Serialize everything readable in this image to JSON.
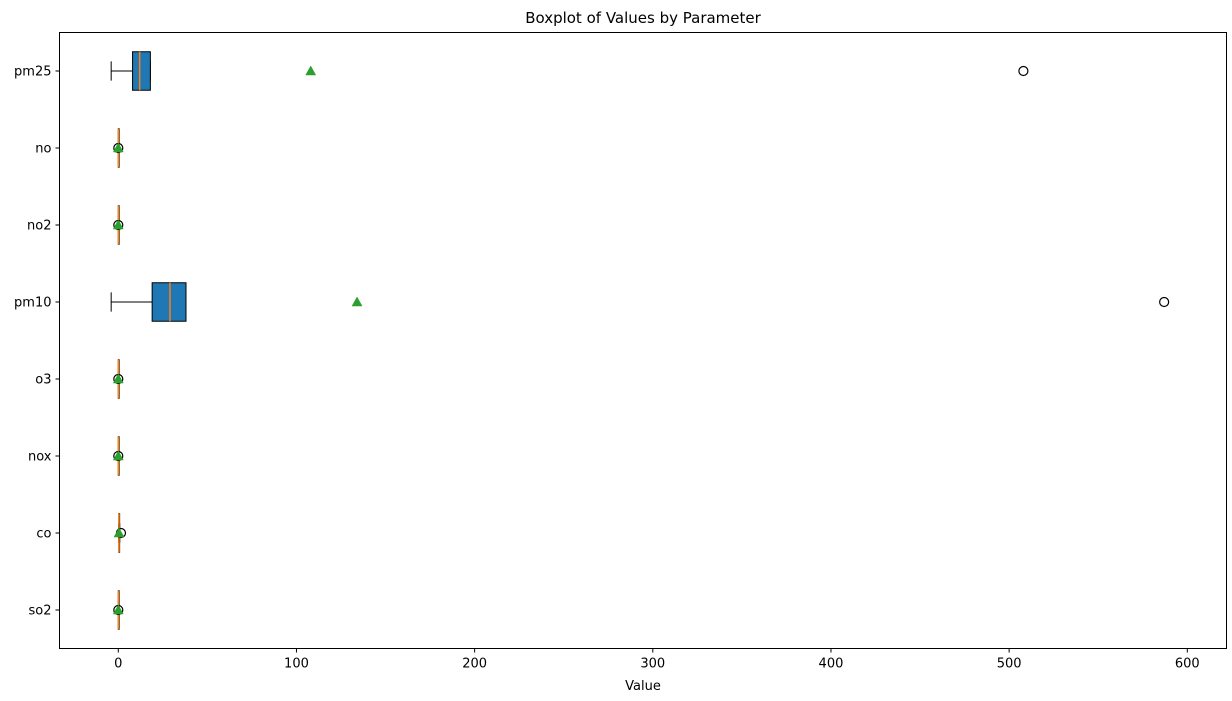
{
  "chart_data": {
    "type": "boxplot",
    "orientation": "horizontal",
    "title": "Boxplot of Values by Parameter",
    "xlabel": "Value",
    "ylabel": "",
    "xlim": [
      -33,
      622
    ],
    "xticks": [
      0,
      100,
      200,
      300,
      400,
      500,
      600
    ],
    "categories": [
      "pm25",
      "no",
      "no2",
      "pm10",
      "o3",
      "nox",
      "co",
      "so2"
    ],
    "series": [
      {
        "category": "pm25",
        "whisker_low": -4,
        "q1": 8,
        "median": 12,
        "q3": 18,
        "whisker_high": 18,
        "mean": 108,
        "outliers": [
          508
        ]
      },
      {
        "category": "no",
        "whisker_low": 0,
        "q1": 0,
        "median": 0,
        "q3": 0,
        "whisker_high": 0,
        "mean": 0,
        "outliers": [
          0
        ]
      },
      {
        "category": "no2",
        "whisker_low": 0,
        "q1": 0,
        "median": 0,
        "q3": 0,
        "whisker_high": 0,
        "mean": 0,
        "outliers": [
          0
        ]
      },
      {
        "category": "pm10",
        "whisker_low": -4,
        "q1": 19,
        "median": 29,
        "q3": 38,
        "whisker_high": 38,
        "mean": 134,
        "outliers": [
          587
        ]
      },
      {
        "category": "o3",
        "whisker_low": 0,
        "q1": 0,
        "median": 0,
        "q3": 0,
        "whisker_high": 0,
        "mean": 0,
        "outliers": [
          0
        ]
      },
      {
        "category": "nox",
        "whisker_low": 0,
        "q1": 0,
        "median": 0,
        "q3": 0,
        "whisker_high": 0,
        "mean": 0,
        "outliers": [
          0
        ]
      },
      {
        "category": "co",
        "whisker_low": 0.2,
        "q1": 0.3,
        "median": 0.4,
        "q3": 0.6,
        "whisker_high": 0.8,
        "mean": 0.4,
        "outliers": [
          1.5
        ]
      },
      {
        "category": "so2",
        "whisker_low": 0,
        "q1": 0,
        "median": 0,
        "q3": 0,
        "whisker_high": 0,
        "mean": 0,
        "outliers": [
          0
        ]
      }
    ],
    "grid": false,
    "colors": {
      "box_fill": "#1f77b4",
      "median": "#ff7f0e",
      "mean_marker": "#2ca02c",
      "edge": "#000000"
    }
  }
}
